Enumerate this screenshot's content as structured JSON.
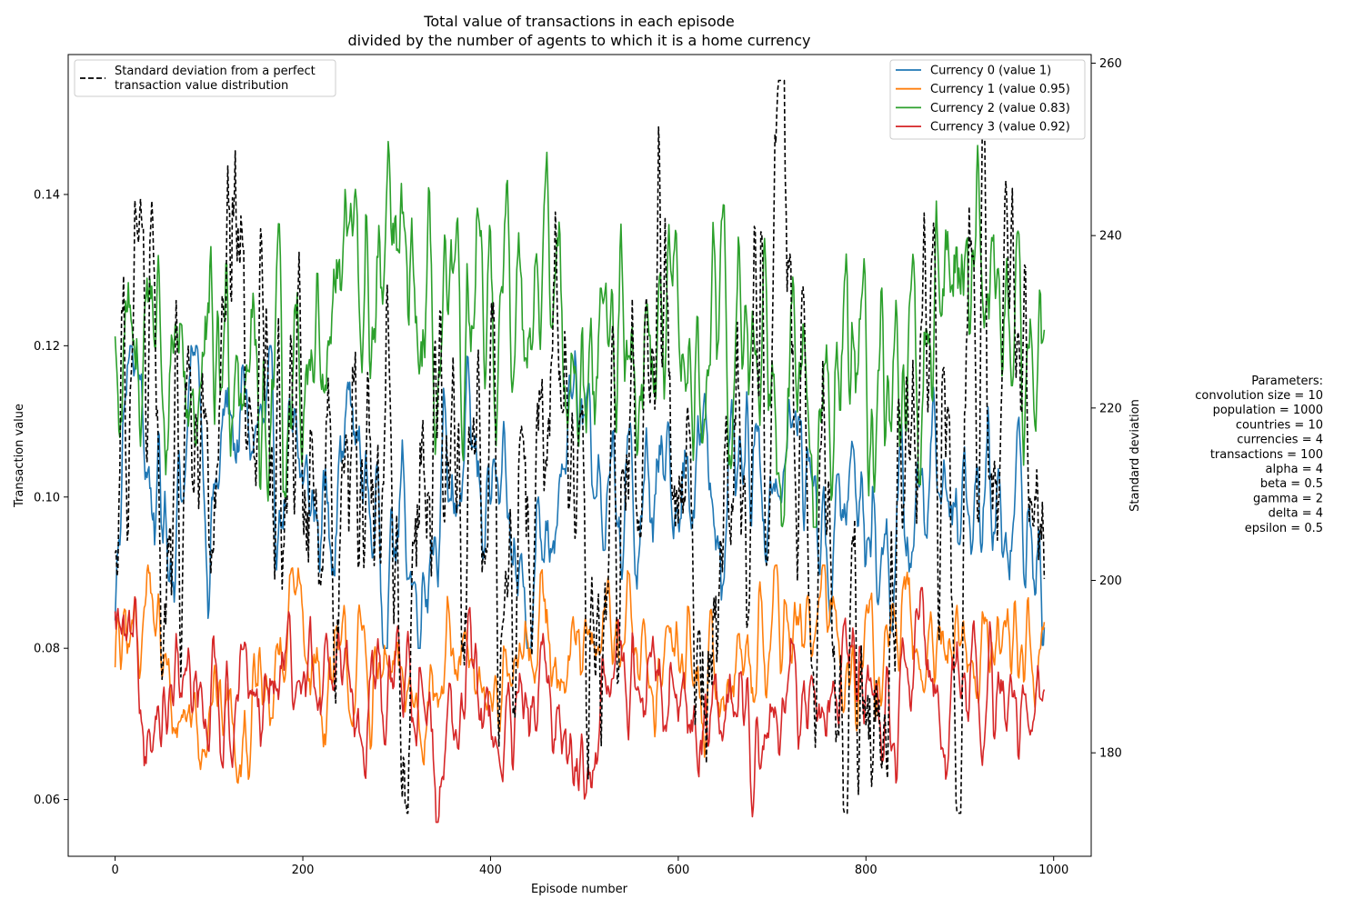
{
  "chart_data": {
    "type": "line",
    "title_line1": "Total value of transactions in each episode",
    "title_line2": "divided by the number of agents to which it is a home currency",
    "xlabel": "Episode number",
    "ylabel": "Transaction value",
    "y2label": "Standard deviation",
    "xlim": [
      -50,
      1040
    ],
    "ylim": [
      0.0525,
      0.1585
    ],
    "y2lim": [
      168,
      261
    ],
    "xticks": [
      0,
      200,
      400,
      600,
      800,
      1000
    ],
    "yticks": [
      0.06,
      0.08,
      0.1,
      0.12,
      0.14
    ],
    "ytick_labels": [
      "0.06",
      "0.08",
      "0.10",
      "0.12",
      "0.14"
    ],
    "y2ticks": [
      180,
      200,
      220,
      240,
      260
    ],
    "x_range": [
      0,
      990
    ],
    "grid": false,
    "legend_left": {
      "placement": "upper-left",
      "entry": "Standard deviation from a perfect transaction value distribution",
      "entry_line1": "Standard deviation from a perfect",
      "entry_line2": "transaction value distribution"
    },
    "legend_right_placement": "upper-right",
    "series": [
      {
        "name": "Currency 0 (value 1)",
        "color": "#1f77b4",
        "axis": "left",
        "keypoints": [
          [
            0,
            0.083
          ],
          [
            8,
            0.112
          ],
          [
            20,
            0.118
          ],
          [
            40,
            0.1
          ],
          [
            60,
            0.095
          ],
          [
            90,
            0.119
          ],
          [
            100,
            0.094
          ],
          [
            120,
            0.11
          ],
          [
            150,
            0.108
          ],
          [
            180,
            0.1
          ],
          [
            200,
            0.102
          ],
          [
            220,
            0.097
          ],
          [
            250,
            0.11
          ],
          [
            290,
            0.09
          ],
          [
            310,
            0.099
          ],
          [
            320,
            0.086
          ],
          [
            340,
            0.1
          ],
          [
            380,
            0.104
          ],
          [
            400,
            0.1
          ],
          [
            420,
            0.092
          ],
          [
            440,
            0.087
          ],
          [
            470,
            0.105
          ],
          [
            500,
            0.11
          ],
          [
            520,
            0.097
          ],
          [
            560,
            0.098
          ],
          [
            600,
            0.103
          ],
          [
            620,
            0.106
          ],
          [
            650,
            0.097
          ],
          [
            700,
            0.104
          ],
          [
            730,
            0.108
          ],
          [
            760,
            0.094
          ],
          [
            790,
            0.101
          ],
          [
            800,
            0.098
          ],
          [
            820,
            0.093
          ],
          [
            850,
            0.097
          ],
          [
            870,
            0.104
          ],
          [
            900,
            0.102
          ],
          [
            920,
            0.103
          ],
          [
            930,
            0.098
          ],
          [
            960,
            0.101
          ],
          [
            990,
            0.087
          ]
        ],
        "min": 0.08,
        "max": 0.12
      },
      {
        "name": "Currency 1 (value 0.95)",
        "color": "#ff7f0e",
        "axis": "left",
        "keypoints": [
          [
            0,
            0.077
          ],
          [
            20,
            0.082
          ],
          [
            35,
            0.089
          ],
          [
            60,
            0.071
          ],
          [
            100,
            0.073
          ],
          [
            150,
            0.07
          ],
          [
            170,
            0.074
          ],
          [
            190,
            0.087
          ],
          [
            220,
            0.074
          ],
          [
            260,
            0.077
          ],
          [
            300,
            0.074
          ],
          [
            330,
            0.075
          ],
          [
            390,
            0.076
          ],
          [
            420,
            0.074
          ],
          [
            460,
            0.084
          ],
          [
            500,
            0.076
          ],
          [
            540,
            0.084
          ],
          [
            560,
            0.078
          ],
          [
            600,
            0.079
          ],
          [
            630,
            0.073
          ],
          [
            650,
            0.076
          ],
          [
            700,
            0.084
          ],
          [
            740,
            0.081
          ],
          [
            760,
            0.085
          ],
          [
            800,
            0.076
          ],
          [
            830,
            0.082
          ],
          [
            860,
            0.079
          ],
          [
            890,
            0.081
          ],
          [
            920,
            0.08
          ],
          [
            960,
            0.082
          ],
          [
            990,
            0.079
          ]
        ],
        "min": 0.061,
        "max": 0.091
      },
      {
        "name": "Currency 2 (value 0.83)",
        "color": "#2ca02c",
        "axis": "left",
        "keypoints": [
          [
            0,
            0.119
          ],
          [
            20,
            0.112
          ],
          [
            40,
            0.132
          ],
          [
            60,
            0.106
          ],
          [
            80,
            0.117
          ],
          [
            100,
            0.112
          ],
          [
            130,
            0.127
          ],
          [
            160,
            0.112
          ],
          [
            200,
            0.12
          ],
          [
            230,
            0.127
          ],
          [
            250,
            0.132
          ],
          [
            270,
            0.123
          ],
          [
            300,
            0.13
          ],
          [
            330,
            0.118
          ],
          [
            380,
            0.117
          ],
          [
            400,
            0.12
          ],
          [
            440,
            0.132
          ],
          [
            470,
            0.128
          ],
          [
            500,
            0.112
          ],
          [
            530,
            0.123
          ],
          [
            560,
            0.122
          ],
          [
            600,
            0.116
          ],
          [
            630,
            0.118
          ],
          [
            660,
            0.118
          ],
          [
            700,
            0.126
          ],
          [
            730,
            0.11
          ],
          [
            750,
            0.103
          ],
          [
            780,
            0.116
          ],
          [
            820,
            0.117
          ],
          [
            850,
            0.114
          ],
          [
            880,
            0.125
          ],
          [
            900,
            0.135
          ],
          [
            940,
            0.132
          ],
          [
            970,
            0.118
          ],
          [
            990,
            0.118
          ]
        ],
        "min": 0.096,
        "max": 0.154
      },
      {
        "name": "Currency 3 (value 0.92)",
        "color": "#d62728",
        "axis": "left",
        "keypoints": [
          [
            0,
            0.083
          ],
          [
            20,
            0.075
          ],
          [
            50,
            0.068
          ],
          [
            80,
            0.074
          ],
          [
            110,
            0.075
          ],
          [
            150,
            0.071
          ],
          [
            200,
            0.078
          ],
          [
            240,
            0.072
          ],
          [
            300,
            0.078
          ],
          [
            340,
            0.066
          ],
          [
            380,
            0.075
          ],
          [
            420,
            0.066
          ],
          [
            460,
            0.074
          ],
          [
            500,
            0.065
          ],
          [
            540,
            0.078
          ],
          [
            580,
            0.075
          ],
          [
            620,
            0.07
          ],
          [
            660,
            0.073
          ],
          [
            700,
            0.07
          ],
          [
            740,
            0.072
          ],
          [
            780,
            0.076
          ],
          [
            800,
            0.075
          ],
          [
            830,
            0.072
          ],
          [
            860,
            0.078
          ],
          [
            890,
            0.071
          ],
          [
            920,
            0.075
          ],
          [
            950,
            0.072
          ],
          [
            990,
            0.075
          ]
        ],
        "min": 0.057,
        "max": 0.088
      },
      {
        "name": "Standard deviation from a perfect transaction value distribution",
        "color": "#000000",
        "dash": true,
        "axis": "right",
        "keypoints": [
          [
            0,
            210
          ],
          [
            15,
            235
          ],
          [
            30,
            225
          ],
          [
            60,
            195
          ],
          [
            80,
            222
          ],
          [
            100,
            205
          ],
          [
            110,
            196
          ],
          [
            125,
            240
          ],
          [
            150,
            225
          ],
          [
            180,
            208
          ],
          [
            200,
            218
          ],
          [
            230,
            212
          ],
          [
            260,
            214
          ],
          [
            290,
            218
          ],
          [
            310,
            182
          ],
          [
            330,
            220
          ],
          [
            360,
            212
          ],
          [
            400,
            215
          ],
          [
            420,
            200
          ],
          [
            450,
            220
          ],
          [
            480,
            228
          ],
          [
            500,
            178
          ],
          [
            530,
            205
          ],
          [
            560,
            215
          ],
          [
            580,
            230
          ],
          [
            600,
            205
          ],
          [
            630,
            198
          ],
          [
            660,
            208
          ],
          [
            700,
            240
          ],
          [
            710,
            255
          ],
          [
            730,
            222
          ],
          [
            760,
            202
          ],
          [
            790,
            180
          ],
          [
            820,
            175
          ],
          [
            840,
            215
          ],
          [
            870,
            218
          ],
          [
            900,
            210
          ],
          [
            930,
            240
          ],
          [
            960,
            215
          ],
          [
            990,
            203
          ]
        ],
        "min": 173,
        "max": 258
      }
    ]
  },
  "params": {
    "header": "Parameters:",
    "lines": [
      "convolution size = 10",
      "population = 1000",
      "countries = 10",
      "currencies = 4",
      "transactions = 100",
      "alpha = 4",
      "beta = 0.5",
      "gamma = 2",
      "delta = 4",
      "epsilon = 0.5"
    ]
  }
}
